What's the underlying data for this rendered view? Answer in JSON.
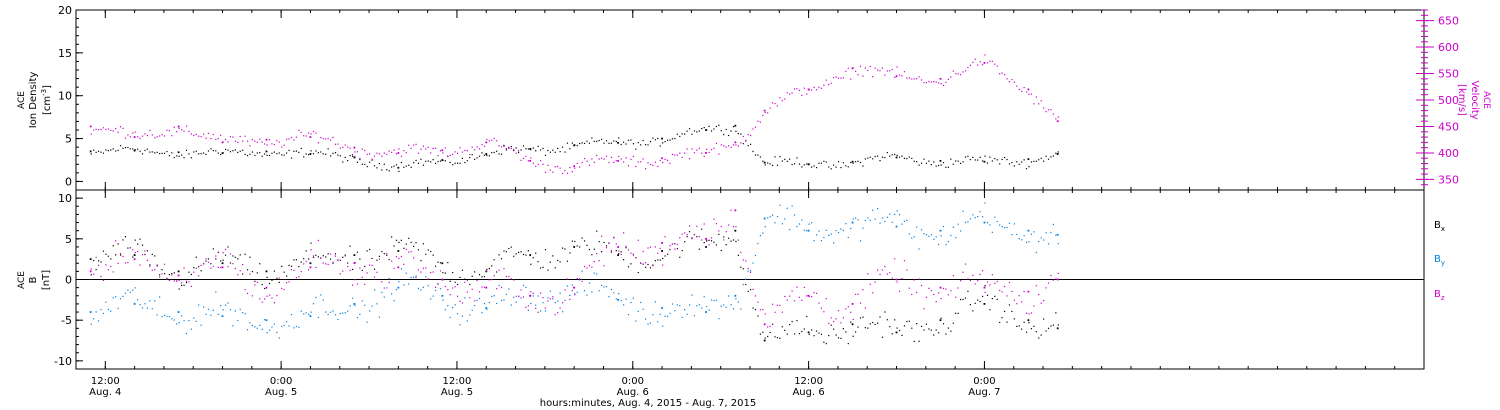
{
  "chart_data": [
    {
      "type": "scatter",
      "title": "",
      "left_axis": {
        "label_lines": [
          "ACE",
          "Ion Density",
          "[cm^-3]"
        ],
        "unit_base": "[cm",
        "unit_exp": "-3",
        "unit_close": "]",
        "ylim": [
          -1,
          20
        ],
        "ticks": [
          0,
          5,
          10,
          15,
          20
        ]
      },
      "right_axis": {
        "label_lines": [
          "ACE",
          "Velocity",
          "[km/s]"
        ],
        "ylim": [
          330,
          670
        ],
        "ticks": [
          350,
          400,
          450,
          500,
          550,
          600,
          650
        ]
      },
      "series": [
        {
          "name": "Ion Density",
          "axis": "left",
          "color": "#000000",
          "approx_points": [
            [
              "2015-08-04T11:00",
              3.5
            ],
            [
              "2015-08-04T14:00",
              3.6
            ],
            [
              "2015-08-04T17:00",
              3.4
            ],
            [
              "2015-08-04T20:00",
              3.3
            ],
            [
              "2015-08-04T23:00",
              3.5
            ],
            [
              "2015-08-05T02:00",
              3.2
            ],
            [
              "2015-08-05T05:00",
              2.8
            ],
            [
              "2015-08-05T08:00",
              1.6
            ],
            [
              "2015-08-05T11:00",
              2.5
            ],
            [
              "2015-08-05T14:00",
              3.2
            ],
            [
              "2015-08-05T17:00",
              3.8
            ],
            [
              "2015-08-05T20:00",
              4.2
            ],
            [
              "2015-08-05T23:00",
              4.5
            ],
            [
              "2015-08-06T02:00",
              5.0
            ],
            [
              "2015-08-06T05:00",
              6.0
            ],
            [
              "2015-08-06T07:00",
              6.5
            ],
            [
              "2015-08-06T09:00",
              2.2
            ],
            [
              "2015-08-06T12:00",
              2.0
            ],
            [
              "2015-08-06T15:00",
              2.3
            ],
            [
              "2015-08-06T18:00",
              2.8
            ],
            [
              "2015-08-06T21:00",
              2.4
            ],
            [
              "2015-08-07T00:00",
              2.3
            ],
            [
              "2015-08-07T03:00",
              2.6
            ],
            [
              "2015-08-07T05:00",
              3.2
            ]
          ]
        },
        {
          "name": "Velocity",
          "axis": "right",
          "color": "#cc00cc",
          "approx_points": [
            [
              "2015-08-04T11:00",
              450
            ],
            [
              "2015-08-04T14:00",
              430
            ],
            [
              "2015-08-04T17:00",
              450
            ],
            [
              "2015-08-04T20:00",
              420
            ],
            [
              "2015-08-04T23:00",
              425
            ],
            [
              "2015-08-05T02:00",
              430
            ],
            [
              "2015-08-05T05:00",
              410
            ],
            [
              "2015-08-05T08:00",
              400
            ],
            [
              "2015-08-05T11:00",
              405
            ],
            [
              "2015-08-05T14:00",
              420
            ],
            [
              "2015-08-05T17:00",
              385
            ],
            [
              "2015-08-05T20:00",
              375
            ],
            [
              "2015-08-05T23:00",
              385
            ],
            [
              "2015-08-06T02:00",
              390
            ],
            [
              "2015-08-06T05:00",
              400
            ],
            [
              "2015-08-06T07:00",
              420
            ],
            [
              "2015-08-06T09:00",
              480
            ],
            [
              "2015-08-06T12:00",
              520
            ],
            [
              "2015-08-06T15:00",
              560
            ],
            [
              "2015-08-06T18:00",
              545
            ],
            [
              "2015-08-06T21:00",
              540
            ],
            [
              "2015-08-07T00:00",
              570
            ],
            [
              "2015-08-07T03:00",
              520
            ],
            [
              "2015-08-07T05:00",
              460
            ]
          ]
        }
      ]
    },
    {
      "type": "scatter",
      "title": "",
      "left_axis": {
        "label_lines": [
          "ACE",
          "B",
          "[nT]"
        ],
        "ylim": [
          -11,
          11
        ],
        "ticks": [
          -10,
          -5,
          0,
          5,
          10
        ]
      },
      "zero_line": true,
      "series": [
        {
          "name": "Bx",
          "label_base": "B",
          "label_sub": "x",
          "color": "#000000",
          "approx_points": [
            [
              "2015-08-04T11:00",
              2.5
            ],
            [
              "2015-08-04T14:00",
              3.0
            ],
            [
              "2015-08-04T17:00",
              1.0
            ],
            [
              "2015-08-04T20:00",
              2.0
            ],
            [
              "2015-08-04T23:00",
              1.0
            ],
            [
              "2015-08-05T02:00",
              2.0
            ],
            [
              "2015-08-05T05:00",
              3.0
            ],
            [
              "2015-08-05T08:00",
              3.5
            ],
            [
              "2015-08-05T11:00",
              2.0
            ],
            [
              "2015-08-05T14:00",
              1.0
            ],
            [
              "2015-08-05T17:00",
              3.0
            ],
            [
              "2015-08-05T20:00",
              4.0
            ],
            [
              "2015-08-05T23:00",
              3.0
            ],
            [
              "2015-08-06T02:00",
              3.5
            ],
            [
              "2015-08-06T05:00",
              4.0
            ],
            [
              "2015-08-06T07:00",
              6.0
            ],
            [
              "2015-08-06T09:00",
              -7.5
            ],
            [
              "2015-08-06T12:00",
              -6.5
            ],
            [
              "2015-08-06T15:00",
              -5.5
            ],
            [
              "2015-08-06T18:00",
              -6.5
            ],
            [
              "2015-08-06T21:00",
              -5.0
            ],
            [
              "2015-08-07T00:00",
              -3.0
            ],
            [
              "2015-08-07T03:00",
              -5.0
            ],
            [
              "2015-08-07T05:00",
              -6.0
            ]
          ]
        },
        {
          "name": "By",
          "label_base": "B",
          "label_sub": "y",
          "color": "#0080e0",
          "approx_points": [
            [
              "2015-08-04T11:00",
              -4.0
            ],
            [
              "2015-08-04T14:00",
              -3.0
            ],
            [
              "2015-08-04T17:00",
              -4.0
            ],
            [
              "2015-08-04T20:00",
              -4.5
            ],
            [
              "2015-08-04T23:00",
              -5.0
            ],
            [
              "2015-08-05T02:00",
              -4.5
            ],
            [
              "2015-08-05T05:00",
              -3.0
            ],
            [
              "2015-08-05T08:00",
              -1.0
            ],
            [
              "2015-08-05T11:00",
              -2.0
            ],
            [
              "2015-08-05T14:00",
              -3.5
            ],
            [
              "2015-08-05T17:00",
              -2.0
            ],
            [
              "2015-08-05T20:00",
              -1.0
            ],
            [
              "2015-08-05T23:00",
              -2.5
            ],
            [
              "2015-08-06T02:00",
              -3.5
            ],
            [
              "2015-08-06T05:00",
              -4.0
            ],
            [
              "2015-08-06T07:00",
              -2.0
            ],
            [
              "2015-08-06T09:00",
              7.5
            ],
            [
              "2015-08-06T12:00",
              6.0
            ],
            [
              "2015-08-06T15:00",
              7.0
            ],
            [
              "2015-08-06T18:00",
              6.5
            ],
            [
              "2015-08-06T21:00",
              6.0
            ],
            [
              "2015-08-07T00:00",
              7.0
            ],
            [
              "2015-08-07T03:00",
              6.0
            ],
            [
              "2015-08-07T05:00",
              5.5
            ]
          ]
        },
        {
          "name": "Bz",
          "label_base": "B",
          "label_sub": "z",
          "color": "#cc00cc",
          "approx_points": [
            [
              "2015-08-04T11:00",
              1.0
            ],
            [
              "2015-08-04T14:00",
              2.5
            ],
            [
              "2015-08-04T17:00",
              0.5
            ],
            [
              "2015-08-04T20:00",
              1.5
            ],
            [
              "2015-08-04T23:00",
              -1.0
            ],
            [
              "2015-08-05T02:00",
              1.5
            ],
            [
              "2015-08-05T05:00",
              2.0
            ],
            [
              "2015-08-05T08:00",
              1.5
            ],
            [
              "2015-08-05T11:00",
              0.0
            ],
            [
              "2015-08-05T14:00",
              -1.0
            ],
            [
              "2015-08-05T17:00",
              -2.0
            ],
            [
              "2015-08-05T20:00",
              -1.0
            ],
            [
              "2015-08-05T23:00",
              4.0
            ],
            [
              "2015-08-06T02:00",
              4.5
            ],
            [
              "2015-08-06T05:00",
              5.0
            ],
            [
              "2015-08-06T07:00",
              8.5
            ],
            [
              "2015-08-06T09:00",
              -5.5
            ],
            [
              "2015-08-06T12:00",
              -2.0
            ],
            [
              "2015-08-06T15:00",
              -3.0
            ],
            [
              "2015-08-06T18:00",
              0.0
            ],
            [
              "2015-08-06T21:00",
              -1.0
            ],
            [
              "2015-08-07T00:00",
              -1.0
            ],
            [
              "2015-08-07T03:00",
              -1.5
            ],
            [
              "2015-08-07T05:00",
              0.0
            ]
          ]
        }
      ]
    }
  ],
  "x_axis": {
    "xlim": [
      "2015-08-04T10:00",
      "2015-08-08T06:00"
    ],
    "xlabel": "hours:minutes, Aug.  4, 2015 - Aug.  7, 2015",
    "major_ticks": [
      {
        "t": "2015-08-04T12:00",
        "label_time": "12:00",
        "label_date": "Aug. 4"
      },
      {
        "t": "2015-08-05T00:00",
        "label_time": "0:00",
        "label_date": "Aug. 5"
      },
      {
        "t": "2015-08-05T12:00",
        "label_time": "12:00",
        "label_date": "Aug. 5"
      },
      {
        "t": "2015-08-06T00:00",
        "label_time": "0:00",
        "label_date": "Aug. 6"
      },
      {
        "t": "2015-08-06T12:00",
        "label_time": "12:00",
        "label_date": "Aug. 6"
      },
      {
        "t": "2015-08-07T00:00",
        "label_time": "0:00",
        "label_date": "Aug. 7"
      }
    ],
    "minor_tick_hours": 2
  }
}
